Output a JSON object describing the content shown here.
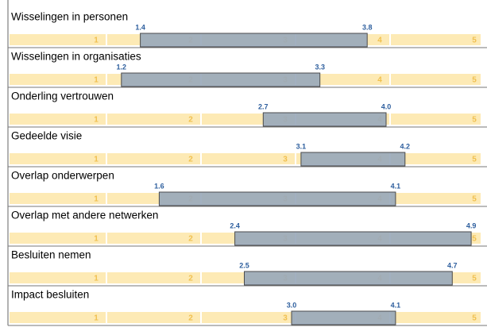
{
  "chart_data": [
    {
      "type": "range",
      "title": "Wisselingen in personen",
      "values": [
        1.4,
        3.8
      ],
      "value_labels": [
        "1.4",
        "3.8"
      ],
      "xlim": [
        0,
        5
      ],
      "xticks": [
        1,
        2,
        3,
        4,
        5
      ],
      "color": "#9aa9bb",
      "band_color": "#fdeab5"
    },
    {
      "type": "range",
      "title": "Wisselingen in organisaties",
      "values": [
        1.2,
        3.3
      ],
      "value_labels": [
        "1.2",
        "3.3"
      ],
      "xlim": [
        0,
        5
      ],
      "xticks": [
        1,
        2,
        3,
        4,
        5
      ],
      "color": "#9aa9bb",
      "band_color": "#fdeab5"
    },
    {
      "type": "range",
      "title": "Onderling vertrouwen",
      "values": [
        2.7,
        4.0
      ],
      "value_labels": [
        "2.7",
        "4.0"
      ],
      "xlim": [
        0,
        5
      ],
      "xticks": [
        1,
        2,
        3,
        4,
        5
      ],
      "color": "#9aa9bb",
      "band_color": "#fdeab5"
    },
    {
      "type": "range",
      "title": "Gedeelde visie",
      "values": [
        3.1,
        4.2
      ],
      "value_labels": [
        "3.1",
        "4.2"
      ],
      "xlim": [
        0,
        5
      ],
      "xticks": [
        1,
        2,
        3,
        4,
        5
      ],
      "color": "#9aa9bb",
      "band_color": "#fdeab5"
    },
    {
      "type": "range",
      "title": "Overlap onderwerpen",
      "values": [
        1.6,
        4.1
      ],
      "value_labels": [
        "1.6",
        "4.1"
      ],
      "xlim": [
        0,
        5
      ],
      "xticks": [
        1,
        2,
        3,
        4,
        5
      ],
      "color": "#9aa9bb",
      "band_color": "#fdeab5"
    },
    {
      "type": "range",
      "title": "Overlap met andere netwerken",
      "values": [
        2.4,
        4.9
      ],
      "value_labels": [
        "2.4",
        "4.9"
      ],
      "xlim": [
        0,
        5
      ],
      "xticks": [
        1,
        2,
        3,
        4,
        5
      ],
      "color": "#9aa9bb",
      "band_color": "#fdeab5"
    },
    {
      "type": "range",
      "title": "Besluiten nemen",
      "values": [
        2.5,
        4.7
      ],
      "value_labels": [
        "2.5",
        "4.7"
      ],
      "xlim": [
        0,
        5
      ],
      "xticks": [
        1,
        2,
        3,
        4,
        5
      ],
      "color": "#9aa9bb",
      "band_color": "#fdeab5"
    },
    {
      "type": "range",
      "title": "Impact besluiten",
      "values": [
        3.0,
        4.1
      ],
      "value_labels": [
        "3.0",
        "4.1"
      ],
      "xlim": [
        0,
        5
      ],
      "xticks": [
        1,
        2,
        3,
        4,
        5
      ],
      "color": "#9aa9bb",
      "band_color": "#fdeab5"
    }
  ]
}
